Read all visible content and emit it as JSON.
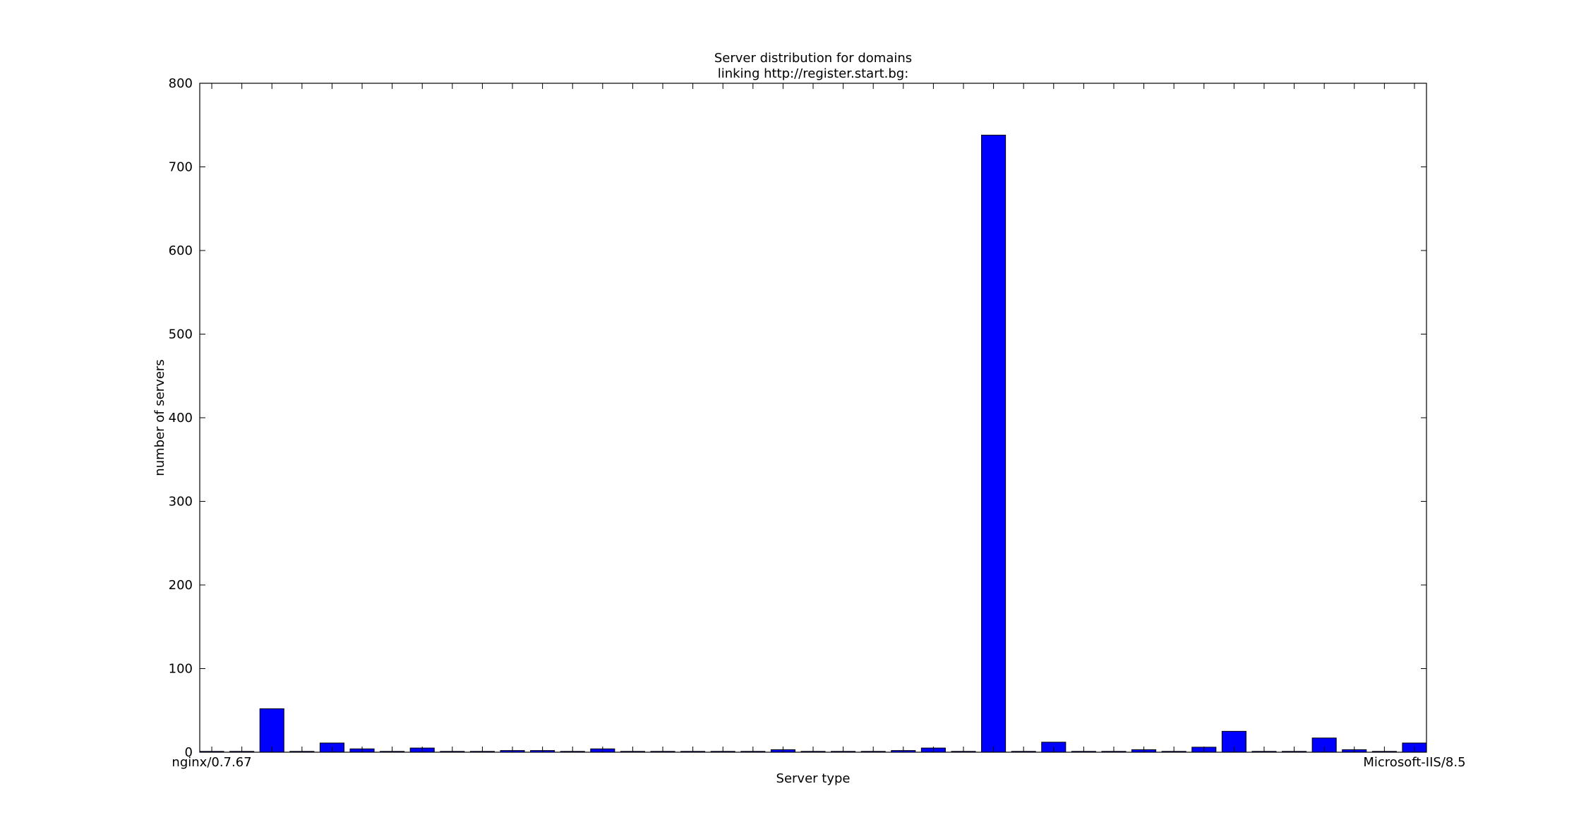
{
  "chart_data": {
    "type": "bar",
    "title": "Server distribution for domains\nlinking http://register.start.bg:",
    "xlabel": "Server type",
    "ylabel": "number of servers",
    "categories": [
      "nginx/0.7.67",
      null,
      null,
      null,
      null,
      null,
      null,
      null,
      null,
      null,
      null,
      null,
      null,
      null,
      null,
      null,
      null,
      null,
      null,
      null,
      null,
      null,
      null,
      null,
      null,
      null,
      null,
      null,
      null,
      null,
      null,
      null,
      null,
      null,
      null,
      null,
      null,
      null,
      null,
      null,
      "Microsoft-IIS/8.5"
    ],
    "values": [
      1,
      1,
      52,
      1,
      11,
      4,
      1,
      5,
      1,
      1,
      2,
      2,
      1,
      4,
      1,
      1,
      1,
      1,
      1,
      3,
      1,
      1,
      1,
      2,
      5,
      1,
      738,
      1,
      12,
      1,
      1,
      3,
      1,
      6,
      25,
      1,
      1,
      17,
      3,
      1,
      11
    ],
    "color": "#0000ff",
    "ylim": [
      0,
      800
    ],
    "yticks": [
      0,
      100,
      200,
      300,
      400,
      500,
      600,
      700,
      800
    ]
  }
}
